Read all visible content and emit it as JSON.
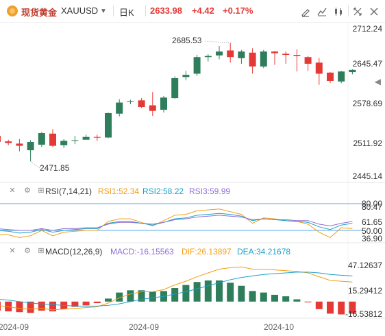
{
  "toolbar": {
    "symbol_name": "现货黄金",
    "symbol_code": "XAUUSD",
    "dropdown_icon": "chevron-down-icon",
    "interval": "日K",
    "price": "2633.98",
    "change": "+4.42",
    "change_pct": "+0.17%",
    "colors": {
      "up": "#e53935",
      "down": "#2e7d5b"
    },
    "right_icons": [
      "draw-pen-icon",
      "indicator-icon",
      "candle-type-icon",
      "fullscreen-icon",
      "close-icon"
    ]
  },
  "price_axis": [
    "2712.24",
    "2645.47",
    "2578.69",
    "2511.92",
    "2445.14"
  ],
  "annotations": {
    "high": "2685.53",
    "low": "2471.85"
  },
  "rsi": {
    "label": "RSI(7,14,21)",
    "rsi1": "RSI1:52.34",
    "rsi2": "RSI2:58.22",
    "rsi3": "RSI3:59.99",
    "colors": {
      "rsi1": "#f39c12",
      "rsi2": "#1ba0c9",
      "rsi3": "#8e6fd6"
    },
    "axis": [
      "80.00",
      "80.47",
      "61.65",
      "50.00",
      "36.90"
    ]
  },
  "macd": {
    "label": "MACD(12,26,9)",
    "macd": "MACD:-16.15563",
    "dif": "DIF:26.13897",
    "dea": "DEA:34.21678",
    "colors": {
      "macd": "#8e6fd6",
      "dif": "#f39c12",
      "dea": "#1ba0c9"
    },
    "axis": [
      "47.12637",
      "15.29412",
      "-16.53812"
    ]
  },
  "dates": [
    "2024-09",
    "2024-09",
    "2024-10"
  ],
  "chart_data": {
    "type": "candlestick",
    "candles": [
      {
        "o": 2518,
        "h": 2523,
        "l": 2507,
        "c": 2507
      },
      {
        "o": 2508,
        "h": 2511,
        "l": 2501,
        "c": 2505
      },
      {
        "o": 2504,
        "h": 2512,
        "l": 2490,
        "c": 2500
      },
      {
        "o": 2492,
        "h": 2510,
        "l": 2472,
        "c": 2507
      },
      {
        "o": 2502,
        "h": 2525,
        "l": 2498,
        "c": 2523
      },
      {
        "o": 2522,
        "h": 2530,
        "l": 2498,
        "c": 2500
      },
      {
        "o": 2501,
        "h": 2512,
        "l": 2496,
        "c": 2509
      },
      {
        "o": 2509,
        "h": 2518,
        "l": 2503,
        "c": 2510
      },
      {
        "o": 2511,
        "h": 2520,
        "l": 2512,
        "c": 2516
      },
      {
        "o": 2516,
        "h": 2520,
        "l": 2509,
        "c": 2515
      },
      {
        "o": 2515,
        "h": 2560,
        "l": 2514,
        "c": 2559
      },
      {
        "o": 2558,
        "h": 2584,
        "l": 2553,
        "c": 2578
      },
      {
        "o": 2579,
        "h": 2583,
        "l": 2575,
        "c": 2580
      },
      {
        "o": 2582,
        "h": 2586,
        "l": 2568,
        "c": 2570
      },
      {
        "o": 2573,
        "h": 2597,
        "l": 2554,
        "c": 2563
      },
      {
        "o": 2565,
        "h": 2590,
        "l": 2560,
        "c": 2587
      },
      {
        "o": 2586,
        "h": 2625,
        "l": 2585,
        "c": 2622
      },
      {
        "o": 2624,
        "h": 2635,
        "l": 2618,
        "c": 2628
      },
      {
        "o": 2630,
        "h": 2664,
        "l": 2626,
        "c": 2660
      },
      {
        "o": 2660,
        "h": 2665,
        "l": 2652,
        "c": 2662
      },
      {
        "o": 2663,
        "h": 2680,
        "l": 2656,
        "c": 2670
      },
      {
        "o": 2672,
        "h": 2685.53,
        "l": 2650,
        "c": 2660
      },
      {
        "o": 2658,
        "h": 2673,
        "l": 2648,
        "c": 2670
      },
      {
        "o": 2668,
        "h": 2676,
        "l": 2630,
        "c": 2643
      },
      {
        "o": 2643,
        "h": 2673,
        "l": 2640,
        "c": 2670
      },
      {
        "o": 2670,
        "h": 2671,
        "l": 2646,
        "c": 2667
      },
      {
        "o": 2666,
        "h": 2670,
        "l": 2648,
        "c": 2664
      },
      {
        "o": 2664,
        "h": 2674,
        "l": 2634,
        "c": 2662
      },
      {
        "o": 2660,
        "h": 2662,
        "l": 2635,
        "c": 2648
      },
      {
        "o": 2650,
        "h": 2658,
        "l": 2610,
        "c": 2630
      },
      {
        "o": 2632,
        "h": 2633,
        "l": 2613,
        "c": 2617
      },
      {
        "o": 2616,
        "h": 2635,
        "l": 2613,
        "c": 2634
      },
      {
        "o": 2633,
        "h": 2638,
        "l": 2629,
        "c": 2637
      }
    ],
    "rsi1": [
      46,
      45,
      42,
      44,
      50,
      44,
      48,
      49,
      50,
      50,
      60,
      63,
      63,
      59,
      55,
      61,
      67,
      68,
      72,
      73,
      74,
      71,
      68,
      58,
      64,
      63,
      61,
      60,
      57,
      48,
      42,
      53,
      52
    ],
    "rsi2": [
      50,
      49,
      47,
      48,
      51,
      48,
      50,
      51,
      52,
      52,
      58,
      60,
      60,
      58,
      56,
      59,
      63,
      64,
      67,
      68,
      69,
      68,
      66,
      61,
      63,
      62,
      61,
      60,
      59,
      54,
      51,
      56,
      58
    ],
    "rsi3": [
      52,
      51,
      50,
      50,
      52,
      50,
      52,
      52,
      53,
      53,
      57,
      59,
      59,
      58,
      57,
      59,
      62,
      63,
      65,
      66,
      67,
      66,
      65,
      62,
      63,
      62,
      62,
      61,
      61,
      57,
      55,
      58,
      60
    ],
    "dif": [
      -5,
      -7,
      -9,
      -10,
      -9,
      -11,
      -10,
      -9,
      -8,
      -7,
      -2,
      5,
      10,
      13,
      13,
      16,
      22,
      27,
      33,
      38,
      43,
      45,
      46,
      43,
      43,
      42,
      41,
      40,
      38,
      33,
      28,
      27,
      26
    ],
    "dea": [
      3,
      2,
      0,
      -2,
      -3,
      -4,
      -5,
      -6,
      -6,
      -6,
      -5,
      -3,
      0,
      3,
      5,
      7,
      10,
      13,
      17,
      21,
      25,
      29,
      32,
      34,
      36,
      37,
      38,
      39,
      39,
      38,
      36,
      35,
      34
    ],
    "macd": [
      -12,
      -13,
      -14,
      -15,
      -12,
      -13,
      -10,
      -7,
      -5,
      -2,
      4,
      12,
      15,
      15,
      13,
      14,
      18,
      22,
      26,
      28,
      28,
      25,
      21,
      14,
      12,
      9,
      7,
      3,
      -1,
      -10,
      -16,
      -17,
      -16
    ]
  }
}
